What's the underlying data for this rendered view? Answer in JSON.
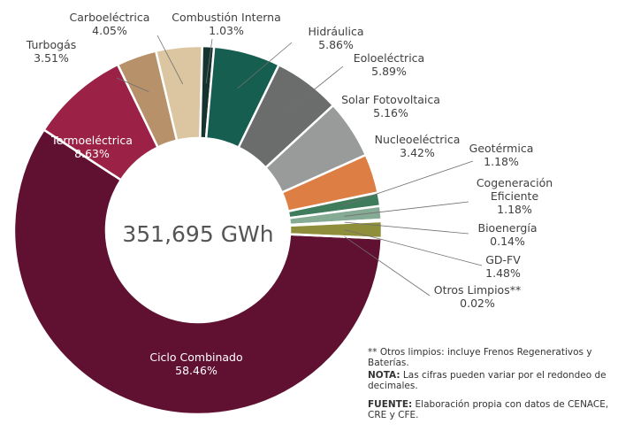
{
  "chart_data": {
    "type": "pie",
    "center_label": "351,695 GWh",
    "slices": [
      {
        "name": "Ciclo Combinado",
        "value": 58.46,
        "value_label": "58.46%",
        "color": "#601030"
      },
      {
        "name": "Termoeléctrica",
        "value": 8.63,
        "value_label": "8.63%",
        "color": "#9b2246"
      },
      {
        "name": "Turbogás",
        "value": 3.51,
        "value_label": "3.51%",
        "color": "#b6916a"
      },
      {
        "name": "Carboeléctrica",
        "value": 4.05,
        "value_label": "4.05%",
        "color": "#dcc5a1"
      },
      {
        "name": "Combustión Interna",
        "value": 1.03,
        "value_label": "1.03%",
        "color": "#16332e"
      },
      {
        "name": "Hidráulica",
        "value": 5.86,
        "value_label": "5.86%",
        "color": "#155e50"
      },
      {
        "name": "Eoloeléctrica",
        "value": 5.89,
        "value_label": "5.89%",
        "color": "#6a6d6b"
      },
      {
        "name": "Solar Fotovoltaica",
        "value": 5.16,
        "value_label": "5.16%",
        "color": "#999b9a"
      },
      {
        "name": "Nucleoeléctrica",
        "value": 3.42,
        "value_label": "3.42%",
        "color": "#dd7f45"
      },
      {
        "name": "Geotérmica",
        "value": 1.18,
        "value_label": "1.18%",
        "color": "#3f7c5c"
      },
      {
        "name": "Cogeneración Eficiente",
        "value": 1.18,
        "value_label": "1.18%",
        "color": "#86ab94"
      },
      {
        "name": "Bioenergía",
        "value": 0.14,
        "value_label": "0.14%",
        "color": "#bccdc1"
      },
      {
        "name": "GD-FV",
        "value": 1.48,
        "value_label": "1.48%",
        "color": "#8f8f3b"
      },
      {
        "name": "Otros Limpios**",
        "value": 0.02,
        "value_label": "0.02%",
        "color": "#d7d7b7"
      }
    ]
  },
  "notes": {
    "footnote": "** Otros limpios: incluye Frenos Regenerativos y Baterías.",
    "nota_label": "NOTA:",
    "nota_text": " Las cifras pueden variar por el redondeo de decimales.",
    "fuente_label": "FUENTE:",
    "fuente_text": " Elaboración propia con datos de CENACE, CRE y CFE."
  }
}
